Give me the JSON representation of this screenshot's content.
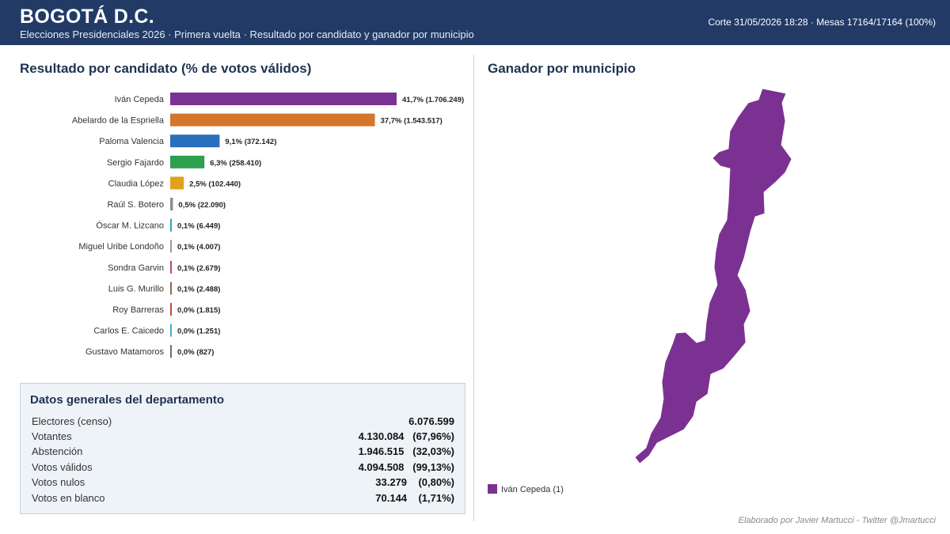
{
  "header": {
    "title": "BOGOTÁ D.C.",
    "subtitle": "Elecciones Presidenciales 2026 · Primera vuelta · Resultado por candidato y ganador por municipio",
    "meta": "Corte 31/05/2026 18:28  ·  Mesas 17164/17164 (100%)"
  },
  "left_panel": {
    "title": "Resultado por candidato (% de votos válidos)"
  },
  "right_panel": {
    "title": "Ganador por municipio"
  },
  "chart_data": {
    "type": "bar",
    "orientation": "horizontal",
    "categories": [
      "Iván Cepeda",
      "Abelardo de la Espriella",
      "Paloma Valencia",
      "Sergio Fajardo",
      "Claudia López",
      "Raúl S. Botero",
      "Óscar M. Lizcano",
      "Miguel Uribe Londoño",
      "Sondra Garvin",
      "Luis G. Murillo",
      "Roy Barreras",
      "Carlos E. Caicedo",
      "Gustavo Matamoros"
    ],
    "values": [
      41.7,
      37.7,
      9.1,
      6.3,
      2.5,
      0.5,
      0.1,
      0.1,
      0.1,
      0.1,
      0.0,
      0.0,
      0.0
    ],
    "value_labels": [
      "41,7%",
      "37,7%",
      "9,1%",
      "6,3%",
      "2,5%",
      "0,5%",
      "0,1%",
      "0,1%",
      "0,1%",
      "0,1%",
      "0,0%",
      "0,0%",
      "0,0%"
    ],
    "votes": [
      "(1.706.249)",
      "(1.543.517)",
      "(372.142)",
      "(258.410)",
      "(102.440)",
      "(22.090)",
      "(6.449)",
      "(4.007)",
      "(2.679)",
      "(2.488)",
      "(1.815)",
      "(1.251)",
      "(827)"
    ],
    "colors": [
      "#7b3192",
      "#d4762c",
      "#2a6fbd",
      "#2e9e4f",
      "#e0a21b",
      "#8c8c8c",
      "#2aa5b8",
      "#9a9aa8",
      "#c0417f",
      "#8e6a4b",
      "#c94444",
      "#3bb1c8",
      "#6e6e6e"
    ],
    "xlim": [
      0,
      41.7
    ],
    "grid": false
  },
  "general_data": {
    "title": "Datos generales del departamento",
    "rows": [
      {
        "label": "Electores (censo)",
        "value": "6.076.599"
      },
      {
        "label": "Votantes",
        "value": "4.130.084   (67,96%)"
      },
      {
        "label": "Abstención",
        "value": "1.946.515   (32,03%)"
      },
      {
        "label": "Votos válidos",
        "value": "4.094.508   (99,13%)"
      },
      {
        "label": "Votos nulos",
        "value": "33.279    (0,80%)"
      },
      {
        "label": "Votos en blanco",
        "value": "70.144    (1,71%)"
      }
    ]
  },
  "map": {
    "fill": "#7b3192",
    "legend": {
      "label": "Iván Cepeda (1)",
      "color": "#7b3192"
    }
  },
  "credit": "Elaborado por Javier Martucci - Twitter @Jmartucci"
}
